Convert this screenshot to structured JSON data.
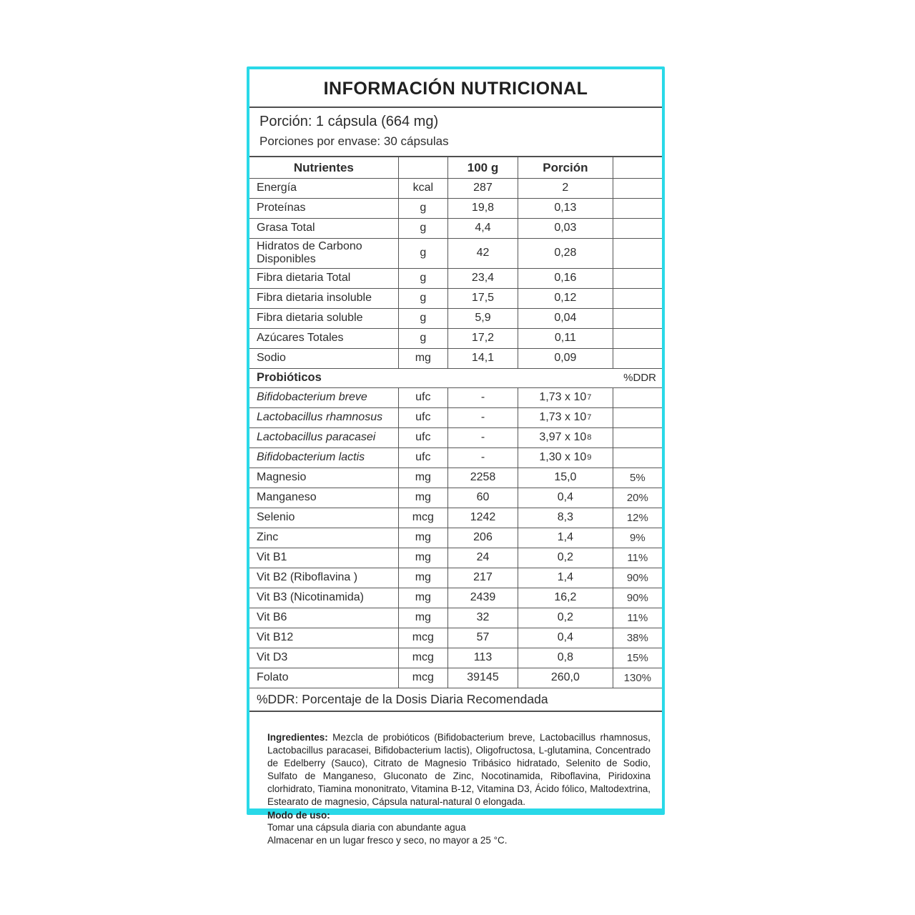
{
  "title": "INFORMACIÓN NUTRICIONAL",
  "serving": {
    "line1": "Porción: 1 cápsula (664 mg)",
    "line2": "Porciones por envase:  30 cápsulas"
  },
  "table": {
    "headers": {
      "nutrientes": "Nutrientes",
      "unit": "",
      "per100": "100 g",
      "porcion": "Porción",
      "ddr": ""
    },
    "rows": [
      {
        "name": "Energía",
        "unit": "kcal",
        "per100": "287",
        "porcion": "2",
        "ddr": ""
      },
      {
        "name": "Proteínas",
        "unit": "g",
        "per100": "19,8",
        "porcion": "0,13",
        "ddr": ""
      },
      {
        "name": "Grasa Total",
        "unit": "g",
        "per100": "4,4",
        "porcion": "0,03",
        "ddr": ""
      },
      {
        "name": "Hidratos de Carbono Disponibles",
        "unit": "g",
        "per100": "42",
        "porcion": "0,28",
        "ddr": ""
      },
      {
        "name": "Fibra dietaria Total",
        "unit": "g",
        "per100": "23,4",
        "porcion": "0,16",
        "ddr": ""
      },
      {
        "name": "Fibra dietaria insoluble",
        "unit": "g",
        "per100": "17,5",
        "porcion": "0,12",
        "ddr": ""
      },
      {
        "name": "Fibra dietaria soluble",
        "unit": "g",
        "per100": "5,9",
        "porcion": "0,04",
        "ddr": ""
      },
      {
        "name": "Azúcares Totales",
        "unit": "g",
        "per100": "17,2",
        "porcion": "0,11",
        "ddr": ""
      },
      {
        "name": "Sodio",
        "unit": "mg",
        "per100": "14,1",
        "porcion": "0,09",
        "ddr": ""
      },
      {
        "type": "section",
        "name": "Probióticos",
        "ddr": "%DDR"
      },
      {
        "name": "Bifidobacterium breve",
        "italic": true,
        "unit": "ufc",
        "per100": "-",
        "porcion": "1,73 x 10",
        "exp": "7",
        "ddr": ""
      },
      {
        "name": "Lactobacillus rhamnosus",
        "italic": true,
        "unit": "ufc",
        "per100": "-",
        "porcion": "1,73 x 10",
        "exp": "7",
        "ddr": ""
      },
      {
        "name": "Lactobacillus paracasei",
        "italic": true,
        "unit": "ufc",
        "per100": "-",
        "porcion": "3,97 x 10",
        "exp": "8",
        "ddr": ""
      },
      {
        "name": "Bifidobacterium lactis",
        "italic": true,
        "unit": "ufc",
        "per100": "-",
        "porcion": "1,30 x 10",
        "exp": "9",
        "ddr": ""
      },
      {
        "name": "Magnesio",
        "unit": "mg",
        "per100": "2258",
        "porcion": "15,0",
        "ddr": "5%"
      },
      {
        "name": "Manganeso",
        "unit": "mg",
        "per100": "60",
        "porcion": "0,4",
        "ddr": "20%"
      },
      {
        "name": "Selenio",
        "unit": "mcg",
        "per100": "1242",
        "porcion": "8,3",
        "ddr": "12%"
      },
      {
        "name": "Zinc",
        "unit": "mg",
        "per100": "206",
        "porcion": "1,4",
        "ddr": "9%"
      },
      {
        "name": "Vit B1",
        "unit": "mg",
        "per100": "24",
        "porcion": "0,2",
        "ddr": "11%"
      },
      {
        "name": "Vit B2 (Riboflavina )",
        "unit": "mg",
        "per100": "217",
        "porcion": "1,4",
        "ddr": "90%"
      },
      {
        "name": "Vit B3 (Nicotinamida)",
        "unit": "mg",
        "per100": "2439",
        "porcion": "16,2",
        "ddr": "90%"
      },
      {
        "name": "Vit B6",
        "unit": "mg",
        "per100": "32",
        "porcion": "0,2",
        "ddr": "11%"
      },
      {
        "name": "Vit B12",
        "unit": "mcg",
        "per100": "57",
        "porcion": "0,4",
        "ddr": "38%"
      },
      {
        "name": "Vit D3",
        "unit": "mcg",
        "per100": "113",
        "porcion": "0,8",
        "ddr": "15%"
      },
      {
        "name": "Folato",
        "unit": "mcg",
        "per100": "39145",
        "porcion": "260,0",
        "ddr": "130%"
      }
    ],
    "footnote": "%DDR: Porcentaje de la Dosis Diaria Recomendada"
  },
  "footer": {
    "ingredientes_label": "Ingredientes:",
    "ingredientes_text": " Mezcla de probióticos (Bifidobacterium breve, Lactobacillus rhamnosus, Lactobacillus paracasei, Bifidobacterium lactis), Oligofructosa, L-glutamina, Concentrado de Edelberry (Sauco), Citrato de Magnesio Tribásico hidratado, Selenito de Sodio, Sulfato de Manganeso, Gluconato de Zinc, Nocotinamida, Riboflavina, Piridoxina clorhidrato, Tiamina mononitrato, Vitamina B-12, Vitamina D3, Ácido fólico, Maltodextrina, Estearato de magnesio, Cápsula natural-natural 0 elongada.",
    "modo_label": "Modo de uso:",
    "modo_line1": "Tomar una cápsula diaria con abundante agua",
    "modo_line2": "Almacenar en un lugar fresco y seco, no mayor a 25 °C."
  },
  "colors": {
    "accent": "#29d9e8",
    "table_border": "#565656",
    "text": "#2d2d2d"
  }
}
